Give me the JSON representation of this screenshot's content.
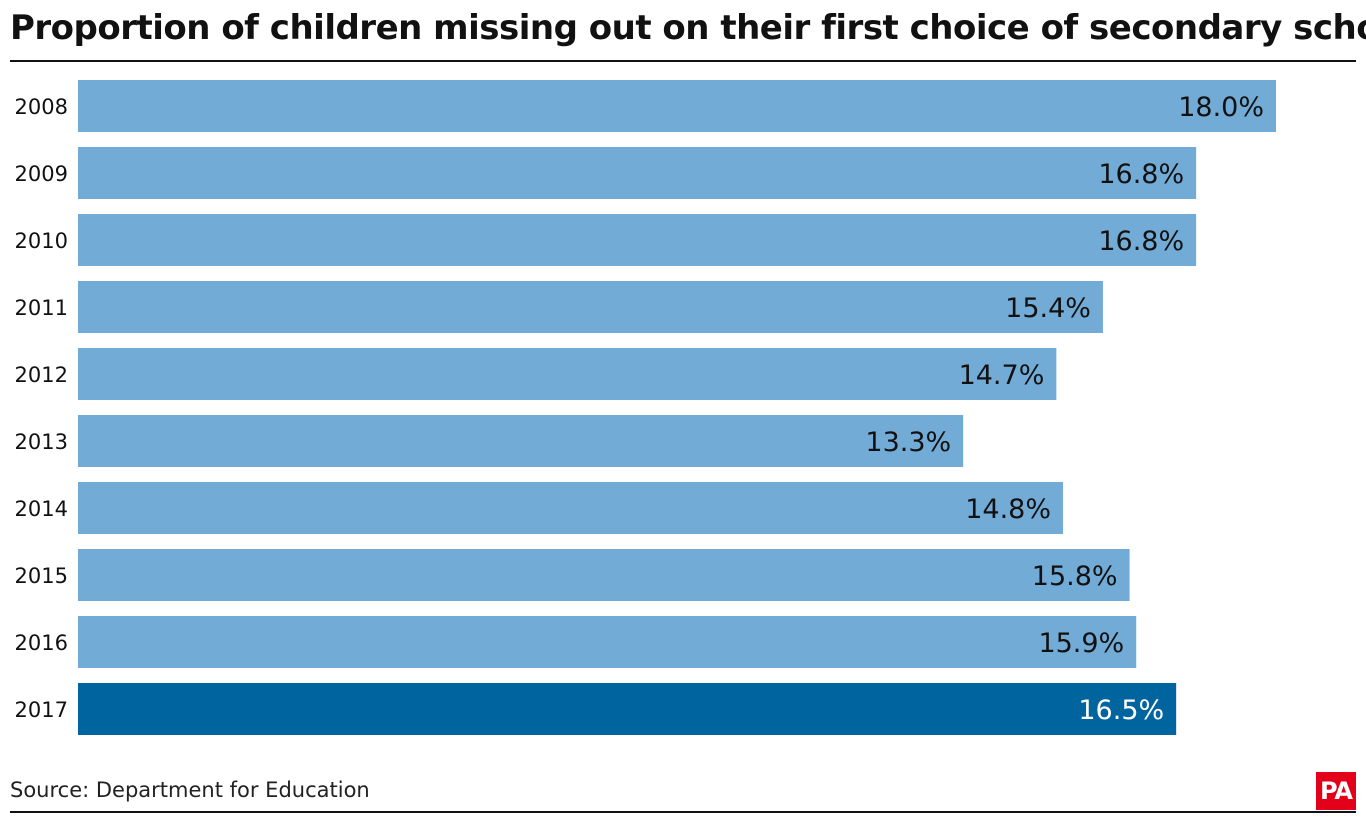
{
  "title": "Proportion of children missing out on their first choice of secondary school",
  "source": "Source: Department for Education",
  "logo_text": "PA",
  "colors": {
    "bar": "#73abd7",
    "bar_highlight": "#00659e",
    "label_dark": "#111111",
    "label_light": "#ffffff",
    "logo": "#e2001a"
  },
  "chart_data": {
    "type": "bar",
    "orientation": "horizontal",
    "categories": [
      "2008",
      "2009",
      "2010",
      "2011",
      "2012",
      "2013",
      "2014",
      "2015",
      "2016",
      "2017"
    ],
    "values": [
      18.0,
      16.8,
      16.8,
      15.4,
      14.7,
      13.3,
      14.8,
      15.8,
      15.9,
      16.5
    ],
    "value_labels": [
      "18.0%",
      "16.8%",
      "16.8%",
      "15.4%",
      "14.7%",
      "13.3%",
      "14.8%",
      "15.8%",
      "15.9%",
      "16.5%"
    ],
    "highlight_category": "2017",
    "title": "Proportion of children missing out on their first choice of secondary school",
    "xlabel": "",
    "ylabel": "",
    "grid": false
  }
}
